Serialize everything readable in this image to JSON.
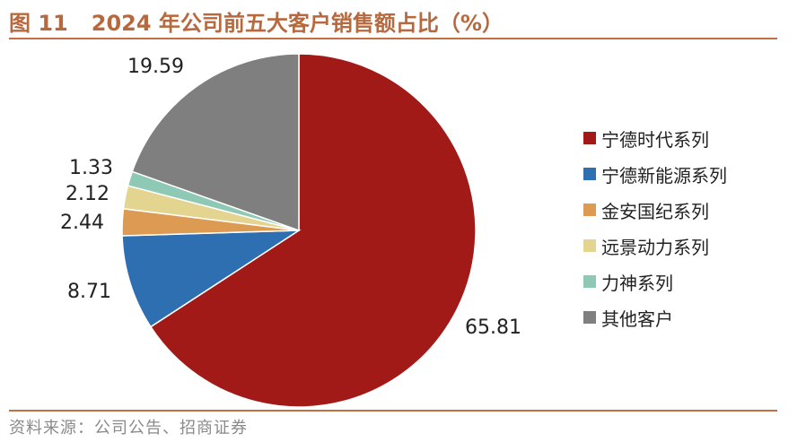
{
  "title": {
    "figure_no": "图 11",
    "text": "2024 年公司前五大客户销售额占比（%）"
  },
  "source": "资料来源：公司公告、招商证券",
  "chart_data": {
    "type": "pie",
    "title": "2024 年公司前五大客户销售额占比（%）",
    "start": "12 o'clock",
    "direction": "clockwise",
    "legend_position": "right",
    "slices": [
      {
        "label": "宁德时代系列",
        "value": 65.81,
        "value_text": "65.81",
        "color": "#a11a17"
      },
      {
        "label": "宁德新能源系列",
        "value": 8.71,
        "value_text": "8.71",
        "color": "#2e6fb2"
      },
      {
        "label": "金安国纪系列",
        "value": 2.44,
        "value_text": "2.44",
        "color": "#dd9a52"
      },
      {
        "label": "远景动力系列",
        "value": 2.12,
        "value_text": "2.12",
        "color": "#e3d48f"
      },
      {
        "label": "力神系列",
        "value": 1.33,
        "value_text": "1.33",
        "color": "#8ec9b5"
      },
      {
        "label": "其他客户",
        "value": 19.59,
        "value_text": "19.59",
        "color": "#7f7f7f"
      }
    ]
  }
}
